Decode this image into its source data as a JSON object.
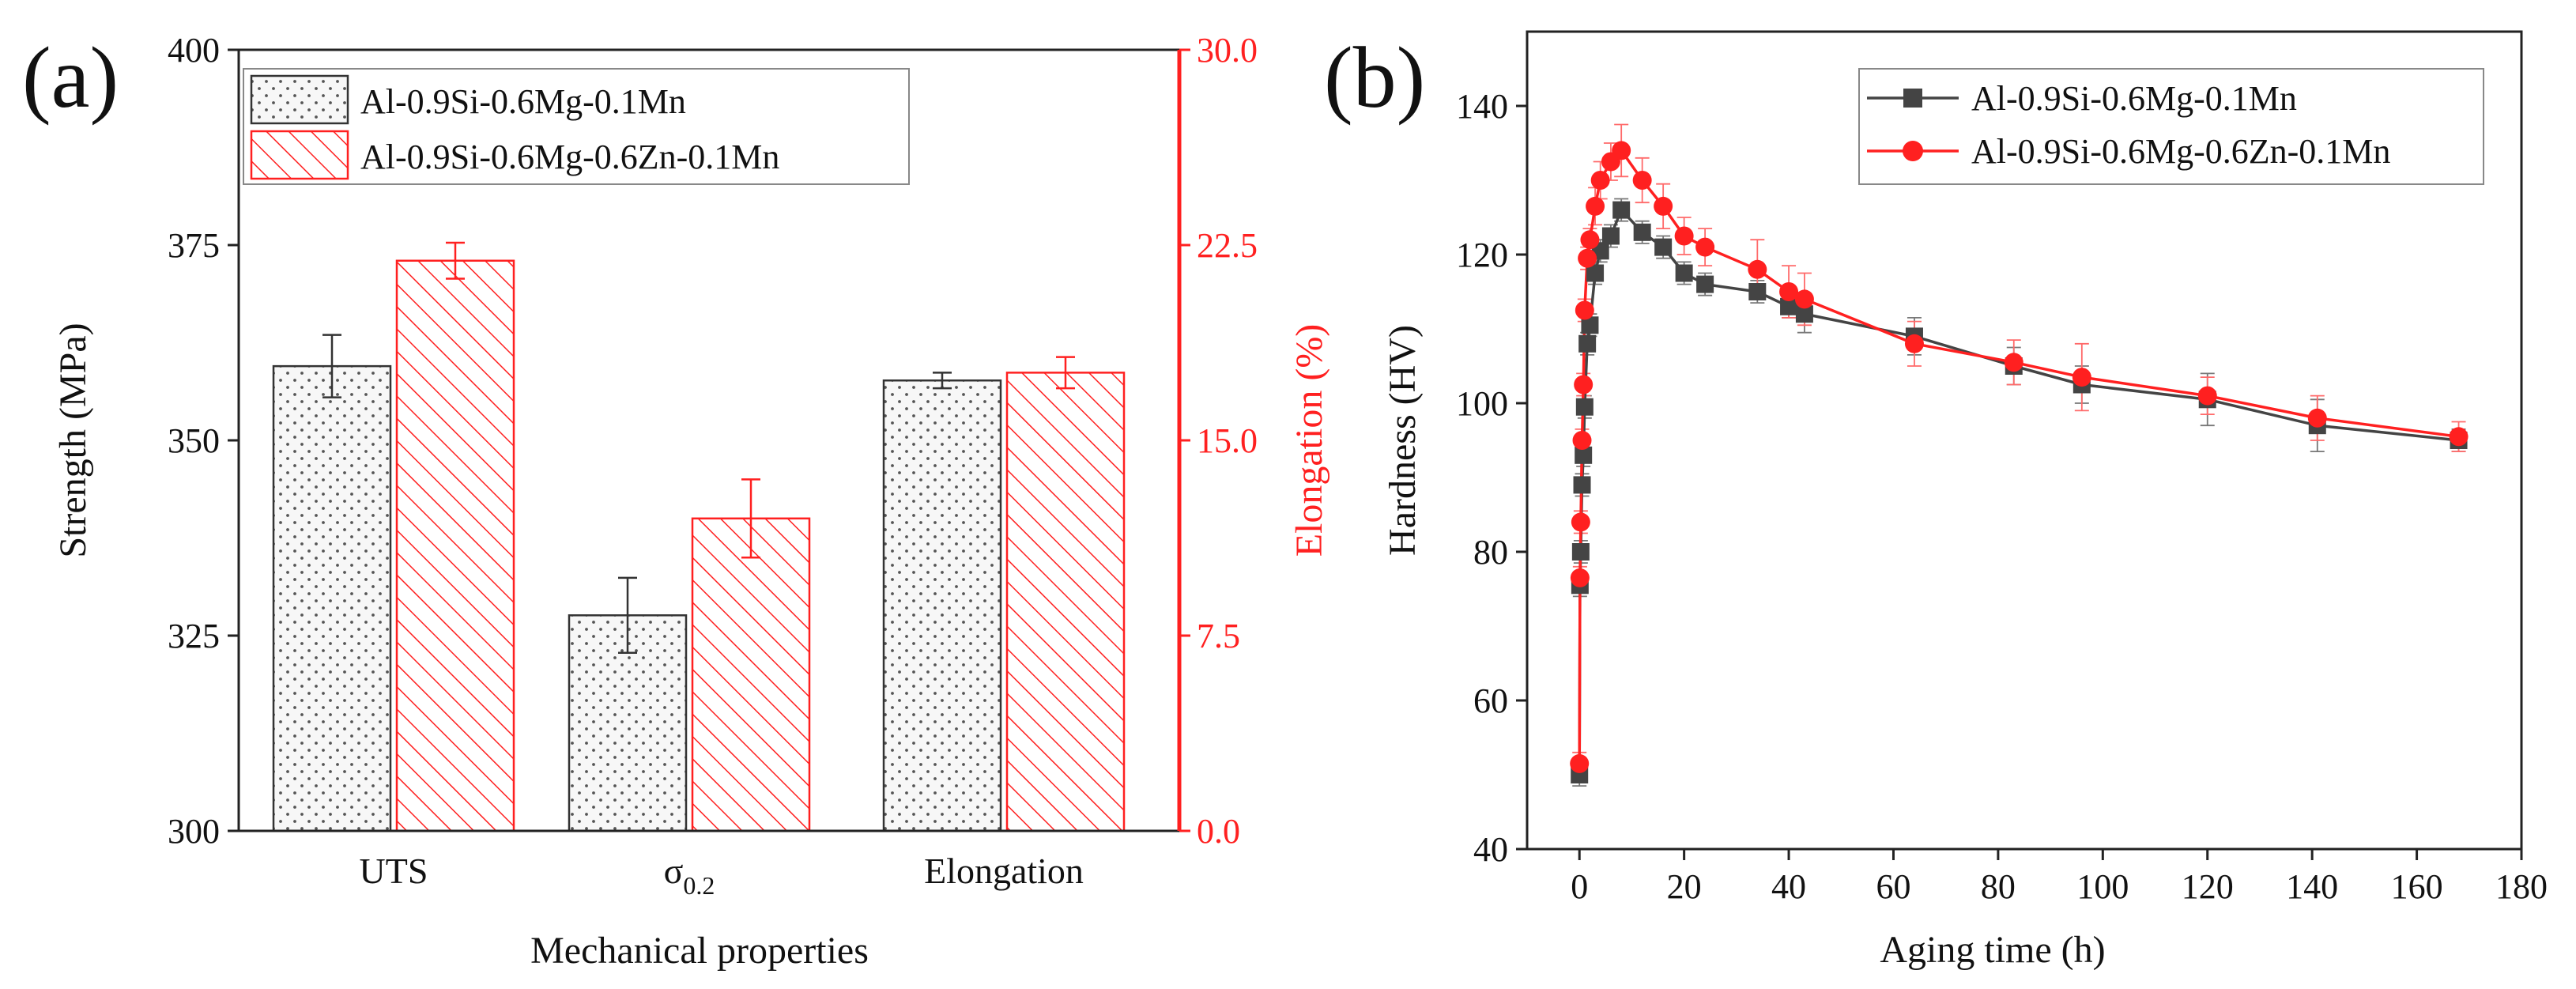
{
  "panel_a_label": "(a)",
  "panel_b_label": "(b)",
  "chart_data": [
    {
      "type": "bar",
      "xlabel": "Mechanical properties",
      "ylabel": "Strength (MPa)",
      "y2label": "Elongation (%)",
      "categories": [
        {
          "text": "UTS",
          "sub": ""
        },
        {
          "text": "σ",
          "sub": "0.2"
        },
        {
          "text": "Elongation",
          "sub": ""
        }
      ],
      "ylim": [
        300,
        400
      ],
      "yticks": [
        300,
        325,
        350,
        375,
        400
      ],
      "y2lim": [
        0.0,
        30.0
      ],
      "y2ticks": [
        "0.0",
        "7.5",
        "15.0",
        "22.5",
        "30.0"
      ],
      "axis_colors": {
        "left": "#222222",
        "right": "#ff2020"
      },
      "legend_position": "top-left",
      "series": [
        {
          "name": "Al-0.9Si-0.6Mg-0.1Mn",
          "pattern": "dots",
          "color": "#333333",
          "fill": "#f4f4f4",
          "values": [
            359.5,
            327.6,
            17.3
          ],
          "errors": [
            4.0,
            4.8,
            0.3
          ],
          "axis": [
            "left",
            "left",
            "right"
          ]
        },
        {
          "name": "Al-0.9Si-0.6Mg-0.6Zn-0.1Mn",
          "pattern": "hatch",
          "color": "#ff2020",
          "fill": "#ffffff",
          "values": [
            373.0,
            340.0,
            17.6
          ],
          "errors": [
            2.3,
            5.0,
            0.6
          ],
          "axis": [
            "left",
            "left",
            "right"
          ]
        }
      ]
    },
    {
      "type": "line",
      "xlabel": "Aging time (h)",
      "ylabel": "Hardness (HV)",
      "xlim": [
        -10,
        180
      ],
      "xticks": [
        0,
        20,
        40,
        60,
        80,
        100,
        120,
        140,
        160,
        180
      ],
      "ylim": [
        40,
        150
      ],
      "yticks": [
        40,
        60,
        80,
        100,
        120,
        140
      ],
      "legend_position": "top-right",
      "series": [
        {
          "name": "Al-0.9Si-0.6Mg-0.1Mn",
          "marker": "square",
          "color": "#444444",
          "x": [
            0,
            0.1,
            0.25,
            0.5,
            0.75,
            1,
            1.5,
            2,
            3,
            4,
            6,
            8,
            12,
            16,
            20,
            24,
            34,
            40,
            43,
            64,
            83,
            96,
            120,
            141,
            168
          ],
          "y": [
            50.0,
            75.5,
            80.0,
            89.0,
            93.0,
            99.5,
            108.0,
            110.5,
            117.5,
            120.5,
            122.5,
            126.0,
            123.0,
            121.0,
            117.5,
            116.0,
            115.0,
            113.0,
            112.0,
            109.0,
            105.0,
            102.5,
            100.5,
            97.0,
            95.0
          ],
          "errors": [
            1.5,
            1.5,
            1.5,
            1.5,
            1.5,
            1.5,
            1.5,
            1.5,
            1.5,
            1.5,
            1.5,
            1.5,
            1.5,
            1.5,
            1.5,
            1.5,
            1.5,
            1.5,
            2.5,
            2.5,
            2.5,
            2.5,
            3.5,
            3.5,
            1.5
          ]
        },
        {
          "name": "Al-0.9Si-0.6Mg-0.6Zn-0.1Mn",
          "marker": "circle",
          "color": "#ff2020",
          "x": [
            0,
            0.1,
            0.25,
            0.5,
            0.75,
            1,
            1.5,
            2,
            3,
            4,
            6,
            8,
            12,
            16,
            20,
            24,
            34,
            40,
            43,
            64,
            83,
            96,
            120,
            141,
            168
          ],
          "y": [
            51.5,
            76.5,
            84.0,
            95.0,
            102.5,
            112.5,
            119.5,
            122.0,
            126.5,
            130.0,
            132.5,
            134.0,
            130.0,
            126.5,
            122.5,
            121.0,
            118.0,
            115.0,
            114.0,
            108.0,
            105.5,
            103.5,
            101.0,
            98.0,
            95.5
          ],
          "errors": [
            1.5,
            1.5,
            1.5,
            1.5,
            1.5,
            1.5,
            1.5,
            1.5,
            2.5,
            2.5,
            2.5,
            3.5,
            3.0,
            3.0,
            2.5,
            2.5,
            4.0,
            3.5,
            3.5,
            3.0,
            3.0,
            4.5,
            2.5,
            3.0,
            2.0
          ]
        }
      ]
    }
  ]
}
